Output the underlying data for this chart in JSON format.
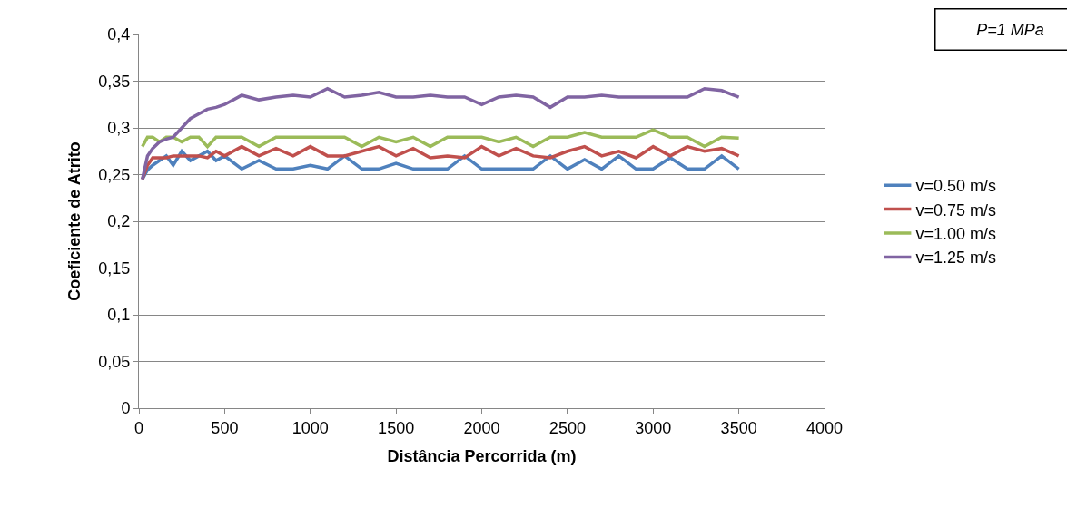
{
  "chart_data": {
    "type": "line",
    "xlabel": "Distância Percorrida (m)",
    "ylabel": "Coeficiente de Atrito",
    "annotations": [
      "P=1 MPa"
    ],
    "x": [
      20,
      50,
      80,
      120,
      160,
      200,
      250,
      300,
      350,
      400,
      450,
      500,
      600,
      700,
      800,
      900,
      1000,
      1100,
      1200,
      1300,
      1400,
      1500,
      1600,
      1700,
      1800,
      1900,
      2000,
      2100,
      2200,
      2300,
      2400,
      2500,
      2600,
      2700,
      2800,
      2900,
      3000,
      3100,
      3200,
      3300,
      3400,
      3500
    ],
    "series": [
      {
        "name": "v=0.50 m/s",
        "color": "#4f81bd",
        "values": [
          0.245,
          0.255,
          0.26,
          0.265,
          0.27,
          0.26,
          0.275,
          0.265,
          0.27,
          0.275,
          0.265,
          0.27,
          0.256,
          0.265,
          0.256,
          0.256,
          0.26,
          0.256,
          0.27,
          0.256,
          0.256,
          0.262,
          0.256,
          0.256,
          0.256,
          0.27,
          0.256,
          0.256,
          0.256,
          0.256,
          0.27,
          0.256,
          0.266,
          0.256,
          0.27,
          0.256,
          0.256,
          0.268,
          0.256,
          0.256,
          0.27,
          0.256
        ]
      },
      {
        "name": "v=0.75 m/s",
        "color": "#c0504d",
        "values": [
          0.245,
          0.26,
          0.268,
          0.268,
          0.268,
          0.27,
          0.27,
          0.27,
          0.27,
          0.268,
          0.275,
          0.27,
          0.28,
          0.27,
          0.278,
          0.27,
          0.28,
          0.27,
          0.27,
          0.275,
          0.28,
          0.27,
          0.278,
          0.268,
          0.27,
          0.268,
          0.28,
          0.27,
          0.278,
          0.27,
          0.268,
          0.275,
          0.28,
          0.27,
          0.275,
          0.268,
          0.28,
          0.27,
          0.28,
          0.275,
          0.278,
          0.27
        ]
      },
      {
        "name": "v=1.00 m/s",
        "color": "#9bbb59",
        "values": [
          0.28,
          0.29,
          0.29,
          0.285,
          0.29,
          0.29,
          0.285,
          0.29,
          0.29,
          0.28,
          0.29,
          0.29,
          0.29,
          0.28,
          0.29,
          0.29,
          0.29,
          0.29,
          0.29,
          0.28,
          0.29,
          0.285,
          0.29,
          0.28,
          0.29,
          0.29,
          0.29,
          0.285,
          0.29,
          0.28,
          0.29,
          0.29,
          0.295,
          0.29,
          0.29,
          0.29,
          0.298,
          0.29,
          0.29,
          0.28,
          0.29,
          0.289
        ]
      },
      {
        "name": "v=1.25 m/s",
        "color": "#8064a2",
        "values": [
          0.245,
          0.27,
          0.278,
          0.285,
          0.288,
          0.29,
          0.3,
          0.31,
          0.315,
          0.32,
          0.322,
          0.325,
          0.335,
          0.33,
          0.333,
          0.335,
          0.333,
          0.342,
          0.333,
          0.335,
          0.338,
          0.333,
          0.333,
          0.335,
          0.333,
          0.333,
          0.325,
          0.333,
          0.335,
          0.333,
          0.322,
          0.333,
          0.333,
          0.335,
          0.333,
          0.333,
          0.333,
          0.333,
          0.333,
          0.342,
          0.34,
          0.333
        ]
      }
    ],
    "xlim": [
      0,
      4000
    ],
    "xticks": [
      0,
      500,
      1000,
      1500,
      2000,
      2500,
      3000,
      3500,
      4000
    ],
    "ylim": [
      0,
      0.4
    ],
    "yticks": [
      0,
      {
        "value": 0.05,
        "label": "0,05"
      },
      {
        "value": 0.1,
        "label": "0,1"
      },
      {
        "value": 0.15,
        "label": "0,15"
      },
      {
        "value": 0.2,
        "label": "0,2"
      },
      {
        "value": 0.25,
        "label": "0,25"
      },
      {
        "value": 0.3,
        "label": "0,3"
      },
      {
        "value": 0.35,
        "label": "0,35"
      },
      {
        "value": 0.4,
        "label": "0,4"
      }
    ],
    "grid": "y",
    "legend": "right",
    "marker": "none",
    "line_style": "solid"
  }
}
